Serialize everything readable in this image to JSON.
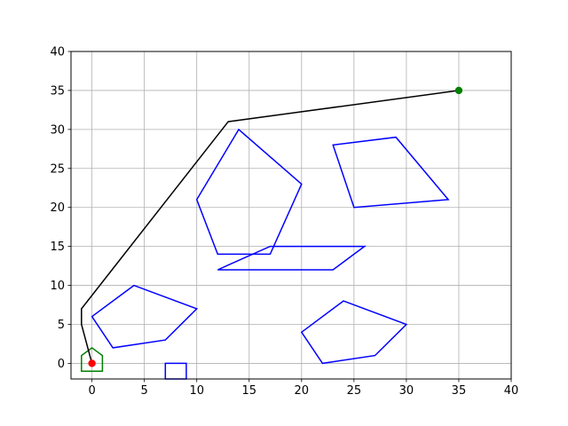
{
  "chart_data": {
    "type": "scatter",
    "title": "",
    "xlabel": "",
    "ylabel": "",
    "xlim": [
      -2,
      40
    ],
    "ylim": [
      -2,
      40
    ],
    "grid": true,
    "x_ticks": [
      0,
      5,
      10,
      15,
      20,
      25,
      30,
      35,
      40
    ],
    "y_ticks": [
      0,
      5,
      10,
      15,
      20,
      25,
      30,
      35,
      40
    ],
    "obstacles": [
      {
        "name": "pentagon-left",
        "color": "#0000ff",
        "points": [
          [
            0,
            6
          ],
          [
            4,
            10
          ],
          [
            10,
            7
          ],
          [
            7,
            3
          ],
          [
            2,
            2
          ]
        ]
      },
      {
        "name": "pentagon-center",
        "color": "#0000ff",
        "points": [
          [
            10,
            21
          ],
          [
            14,
            30
          ],
          [
            20,
            23
          ],
          [
            17,
            14
          ],
          [
            12,
            14
          ]
        ]
      },
      {
        "name": "parallelogram",
        "color": "#0000ff",
        "points": [
          [
            12,
            12
          ],
          [
            17,
            15
          ],
          [
            26,
            15
          ],
          [
            23,
            12
          ]
        ]
      },
      {
        "name": "quad-right",
        "color": "#0000ff",
        "points": [
          [
            23,
            28
          ],
          [
            29,
            29
          ],
          [
            34,
            21
          ],
          [
            25,
            20
          ]
        ]
      },
      {
        "name": "pentagon-bottom-right",
        "color": "#0000ff",
        "points": [
          [
            20,
            4
          ],
          [
            24,
            8
          ],
          [
            30,
            5
          ],
          [
            27,
            1
          ],
          [
            22,
            0
          ]
        ]
      },
      {
        "name": "small-rectangle",
        "color": "#0000ff",
        "points": [
          [
            7,
            -2
          ],
          [
            9,
            -2
          ],
          [
            9,
            0
          ],
          [
            7,
            0
          ]
        ]
      }
    ],
    "robot": {
      "name": "robot-footprint",
      "color": "#008000",
      "points": [
        [
          -1,
          -1
        ],
        [
          1,
          -1
        ],
        [
          1,
          1
        ],
        [
          0,
          2
        ],
        [
          -1,
          1
        ]
      ]
    },
    "path": {
      "color": "#000000",
      "points": [
        [
          0,
          0
        ],
        [
          -1,
          5
        ],
        [
          -1,
          7
        ],
        [
          13,
          31
        ],
        [
          35,
          35
        ]
      ]
    },
    "start": {
      "x": 0,
      "y": 0,
      "color": "#ff0000"
    },
    "goal": {
      "x": 35,
      "y": 35,
      "color": "#008000"
    }
  }
}
